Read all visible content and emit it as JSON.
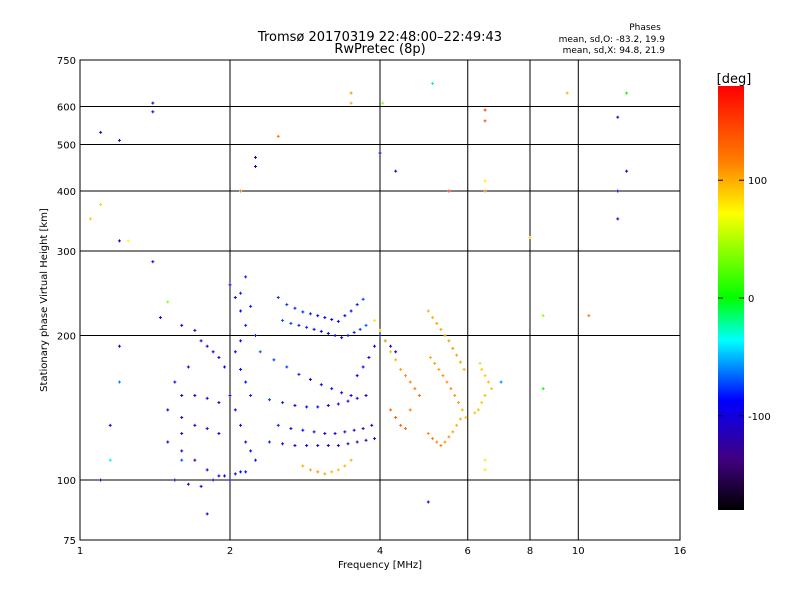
{
  "chart_data": {
    "type": "scatter",
    "title": "Tromsø 20170319 22:48:00–22:49:43",
    "subtitle": "RwPretec (8p)",
    "xlabel": "Frequency [MHz]",
    "ylabel": "Stationary phase Virtual Height [km]",
    "x_scale": "log",
    "y_scale": "log",
    "xlim": [
      1,
      16
    ],
    "ylim": [
      75,
      750
    ],
    "x_ticks": [
      1,
      2,
      4,
      6,
      8,
      10,
      16
    ],
    "y_ticks": [
      75,
      100,
      200,
      300,
      400,
      500,
      600,
      750
    ],
    "grid": true,
    "stats": {
      "heading": "Phases",
      "line_o": "mean, sd,O: -83.2, 19.9",
      "line_x": "mean, sd,X:  94.8, 21.9"
    },
    "colorbar": {
      "label": "[deg]",
      "range": [
        -180,
        180
      ],
      "ticks": [
        100,
        0,
        -100
      ],
      "colors": [
        "#ff0000",
        "#ff8000",
        "#ffff00",
        "#00ff00",
        "#00ffff",
        "#0000ff",
        "#400080",
        "#000000"
      ]
    },
    "series": [
      {
        "values": [
          [
            1.45,
            218,
            -95
          ],
          [
            1.6,
            210,
            -95
          ],
          [
            1.7,
            205,
            -100
          ],
          [
            1.75,
            195,
            -100
          ],
          [
            1.8,
            190,
            -100
          ],
          [
            1.85,
            185,
            -95
          ],
          [
            1.9,
            180,
            -95
          ],
          [
            1.95,
            172,
            -90
          ],
          [
            1.65,
            172,
            -100
          ],
          [
            1.55,
            160,
            -105
          ],
          [
            1.6,
            150,
            -110
          ],
          [
            1.7,
            150,
            -105
          ],
          [
            1.8,
            148,
            -100
          ],
          [
            1.9,
            145,
            -95
          ],
          [
            1.5,
            140,
            -110
          ],
          [
            1.6,
            135,
            -110
          ],
          [
            1.7,
            130,
            -105
          ],
          [
            1.8,
            128,
            -100
          ],
          [
            1.9,
            125,
            -95
          ],
          [
            2.0,
            150,
            -90
          ],
          [
            1.5,
            120,
            -110
          ],
          [
            1.6,
            115,
            -110
          ],
          [
            1.7,
            110,
            -105
          ],
          [
            1.8,
            105,
            -100
          ],
          [
            1.9,
            102,
            -95
          ],
          [
            2.0,
            100,
            -90
          ],
          [
            1.55,
            100,
            -110
          ],
          [
            1.65,
            98,
            -105
          ],
          [
            1.75,
            97,
            -100
          ],
          [
            1.85,
            100,
            -100
          ],
          [
            1.95,
            102,
            -95
          ],
          [
            2.05,
            103,
            -90
          ],
          [
            2.1,
            104,
            -85
          ],
          [
            2.15,
            104,
            -85
          ]
        ]
      },
      {
        "values": [
          [
            2.0,
            255,
            -85
          ],
          [
            2.05,
            240,
            -85
          ],
          [
            2.1,
            225,
            -85
          ],
          [
            2.15,
            210,
            -80
          ],
          [
            2.1,
            195,
            -85
          ],
          [
            2.05,
            185,
            -85
          ],
          [
            2.1,
            170,
            -85
          ],
          [
            2.15,
            160,
            -85
          ],
          [
            2.2,
            150,
            -80
          ],
          [
            2.05,
            140,
            -85
          ],
          [
            2.1,
            130,
            -85
          ],
          [
            2.15,
            120,
            -85
          ],
          [
            2.2,
            115,
            -85
          ],
          [
            2.25,
            110,
            -80
          ],
          [
            2.15,
            265,
            -80
          ],
          [
            2.1,
            245,
            -80
          ],
          [
            2.2,
            230,
            -80
          ],
          [
            2.25,
            200,
            -80
          ]
        ]
      },
      {
        "values": [
          [
            2.5,
            240,
            -75
          ],
          [
            2.6,
            232,
            -75
          ],
          [
            2.7,
            228,
            -80
          ],
          [
            2.8,
            224,
            -80
          ],
          [
            2.9,
            222,
            -80
          ],
          [
            3.0,
            220,
            -85
          ],
          [
            3.1,
            218,
            -90
          ],
          [
            3.2,
            216,
            -95
          ],
          [
            3.3,
            214,
            -100
          ],
          [
            3.4,
            220,
            -90
          ],
          [
            3.5,
            225,
            -85
          ],
          [
            3.6,
            232,
            -80
          ],
          [
            3.7,
            238,
            -75
          ],
          [
            2.55,
            215,
            -70
          ],
          [
            2.65,
            212,
            -75
          ],
          [
            2.75,
            210,
            -80
          ],
          [
            2.85,
            208,
            -80
          ],
          [
            2.95,
            206,
            -85
          ],
          [
            3.05,
            204,
            -90
          ],
          [
            3.15,
            202,
            -95
          ],
          [
            3.25,
            200,
            -95
          ],
          [
            3.35,
            198,
            -90
          ],
          [
            3.45,
            200,
            -85
          ],
          [
            3.55,
            203,
            -80
          ],
          [
            3.65,
            206,
            -75
          ],
          [
            3.75,
            210,
            -70
          ]
        ]
      },
      {
        "values": [
          [
            2.3,
            185,
            -70
          ],
          [
            2.45,
            178,
            -75
          ],
          [
            2.6,
            172,
            -75
          ],
          [
            2.75,
            166,
            -80
          ],
          [
            2.9,
            162,
            -85
          ],
          [
            3.05,
            158,
            -90
          ],
          [
            3.2,
            155,
            -95
          ],
          [
            3.35,
            152,
            -95
          ],
          [
            3.5,
            150,
            -95
          ],
          [
            3.6,
            165,
            -90
          ],
          [
            3.7,
            172,
            -90
          ],
          [
            3.8,
            180,
            -85
          ],
          [
            3.9,
            190,
            -85
          ],
          [
            4.0,
            200,
            -85
          ],
          [
            4.1,
            195,
            -85
          ],
          [
            4.2,
            190,
            -85
          ],
          [
            4.3,
            185,
            -90
          ]
        ]
      },
      {
        "values": [
          [
            2.4,
            147,
            -75
          ],
          [
            2.55,
            145,
            -80
          ],
          [
            2.7,
            143,
            -85
          ],
          [
            2.85,
            142,
            -90
          ],
          [
            3.0,
            142,
            -95
          ],
          [
            3.15,
            143,
            -100
          ],
          [
            3.3,
            144,
            -105
          ],
          [
            3.45,
            146,
            -110
          ],
          [
            3.6,
            148,
            -105
          ],
          [
            3.75,
            150,
            -100
          ],
          [
            2.5,
            130,
            -80
          ],
          [
            2.65,
            128,
            -85
          ],
          [
            2.8,
            127,
            -90
          ],
          [
            2.95,
            126,
            -95
          ],
          [
            3.1,
            125,
            -100
          ],
          [
            3.25,
            125,
            -105
          ],
          [
            3.4,
            126,
            -110
          ],
          [
            3.55,
            127,
            -110
          ],
          [
            3.7,
            128,
            -110
          ],
          [
            3.85,
            130,
            -105
          ]
        ]
      },
      {
        "values": [
          [
            2.4,
            120,
            -80
          ],
          [
            2.55,
            119,
            -85
          ],
          [
            2.7,
            118,
            -90
          ],
          [
            2.85,
            118,
            -95
          ],
          [
            3.0,
            118,
            -100
          ],
          [
            3.15,
            118,
            -105
          ],
          [
            3.3,
            118,
            -110
          ],
          [
            3.45,
            119,
            -115
          ],
          [
            3.6,
            120,
            -115
          ],
          [
            3.75,
            121,
            -110
          ],
          [
            3.9,
            122,
            -105
          ]
        ]
      },
      {
        "values": [
          [
            2.8,
            107,
            100
          ],
          [
            2.9,
            105,
            105
          ],
          [
            3.0,
            104,
            110
          ],
          [
            3.1,
            103,
            105
          ],
          [
            3.2,
            104,
            100
          ],
          [
            3.3,
            105,
            95
          ],
          [
            3.4,
            107,
            100
          ],
          [
            3.5,
            110,
            100
          ]
        ]
      },
      {
        "values": [
          [
            3.9,
            215,
            80
          ],
          [
            4.0,
            205,
            85
          ],
          [
            4.1,
            195,
            90
          ],
          [
            4.2,
            185,
            95
          ],
          [
            4.3,
            178,
            100
          ],
          [
            4.4,
            170,
            105
          ],
          [
            4.5,
            165,
            110
          ],
          [
            4.6,
            160,
            115
          ],
          [
            4.7,
            155,
            120
          ],
          [
            4.8,
            150,
            125
          ],
          [
            4.2,
            140,
            130
          ],
          [
            4.3,
            135,
            135
          ],
          [
            4.4,
            130,
            130
          ],
          [
            4.5,
            128,
            125
          ],
          [
            4.6,
            140,
            120
          ]
        ]
      },
      {
        "values": [
          [
            5.0,
            225,
            100
          ],
          [
            5.1,
            218,
            100
          ],
          [
            5.2,
            212,
            105
          ],
          [
            5.3,
            206,
            105
          ],
          [
            5.4,
            200,
            110
          ],
          [
            5.5,
            195,
            110
          ],
          [
            5.6,
            188,
            110
          ],
          [
            5.7,
            182,
            105
          ],
          [
            5.8,
            176,
            105
          ],
          [
            5.9,
            170,
            100
          ],
          [
            5.05,
            180,
            100
          ],
          [
            5.15,
            175,
            105
          ],
          [
            5.25,
            170,
            105
          ],
          [
            5.35,
            165,
            110
          ],
          [
            5.45,
            160,
            110
          ],
          [
            5.55,
            155,
            115
          ],
          [
            5.65,
            150,
            110
          ],
          [
            5.75,
            145,
            105
          ],
          [
            5.85,
            140,
            100
          ],
          [
            5.95,
            135,
            95
          ],
          [
            5.0,
            125,
            110
          ],
          [
            5.1,
            122,
            115
          ],
          [
            5.2,
            120,
            115
          ],
          [
            5.3,
            118,
            115
          ],
          [
            5.4,
            120,
            110
          ],
          [
            5.5,
            123,
            110
          ],
          [
            5.6,
            126,
            105
          ],
          [
            5.7,
            130,
            100
          ],
          [
            5.8,
            134,
            100
          ]
        ]
      },
      {
        "values": [
          [
            6.4,
            170,
            90
          ],
          [
            6.5,
            165,
            90
          ],
          [
            6.6,
            160,
            95
          ],
          [
            6.7,
            155,
            95
          ],
          [
            6.5,
            150,
            95
          ],
          [
            6.4,
            145,
            90
          ],
          [
            6.3,
            140,
            95
          ],
          [
            6.2,
            138,
            95
          ],
          [
            6.35,
            175,
            85
          ]
        ]
      },
      {
        "values": [
          [
            1.05,
            350,
            90
          ],
          [
            1.1,
            375,
            50
          ],
          [
            1.1,
            530,
            -110
          ],
          [
            1.2,
            510,
            -110
          ],
          [
            1.2,
            315,
            -110
          ],
          [
            1.25,
            315,
            70
          ],
          [
            1.4,
            610,
            -110
          ],
          [
            1.4,
            585,
            -95
          ],
          [
            1.4,
            285,
            -100
          ],
          [
            1.5,
            235,
            40
          ],
          [
            2.1,
            400,
            120
          ],
          [
            2.25,
            470,
            -110
          ],
          [
            2.25,
            450,
            -100
          ],
          [
            2.5,
            520,
            120
          ],
          [
            3.5,
            640,
            110
          ],
          [
            3.5,
            610,
            100
          ],
          [
            4.0,
            480,
            -100
          ],
          [
            4.05,
            610,
            40
          ],
          [
            4.3,
            440,
            -110
          ],
          [
            5.1,
            670,
            -20
          ],
          [
            5.5,
            400,
            150
          ],
          [
            6.5,
            590,
            150
          ],
          [
            6.5,
            560,
            140
          ],
          [
            6.5,
            420,
            80
          ],
          [
            6.5,
            400,
            120
          ],
          [
            8.0,
            320,
            90
          ],
          [
            9.5,
            640,
            100
          ],
          [
            12.0,
            570,
            -110
          ],
          [
            12.5,
            640,
            0
          ],
          [
            12.0,
            400,
            -110
          ],
          [
            12.0,
            350,
            -95
          ],
          [
            12.5,
            440,
            -110
          ],
          [
            10.5,
            220,
            120
          ],
          [
            8.5,
            220,
            40
          ],
          [
            8.5,
            155,
            0
          ],
          [
            7.0,
            160,
            -60
          ],
          [
            6.5,
            110,
            60
          ],
          [
            6.5,
            105,
            80
          ],
          [
            5.0,
            90,
            -90
          ],
          [
            1.8,
            85,
            -110
          ],
          [
            1.1,
            100,
            -110
          ],
          [
            1.15,
            110,
            -40
          ],
          [
            1.15,
            130,
            -90
          ],
          [
            1.2,
            190,
            -110
          ],
          [
            1.2,
            160,
            -60
          ],
          [
            1.6,
            125,
            -110
          ],
          [
            1.6,
            110,
            -70
          ]
        ]
      }
    ]
  }
}
